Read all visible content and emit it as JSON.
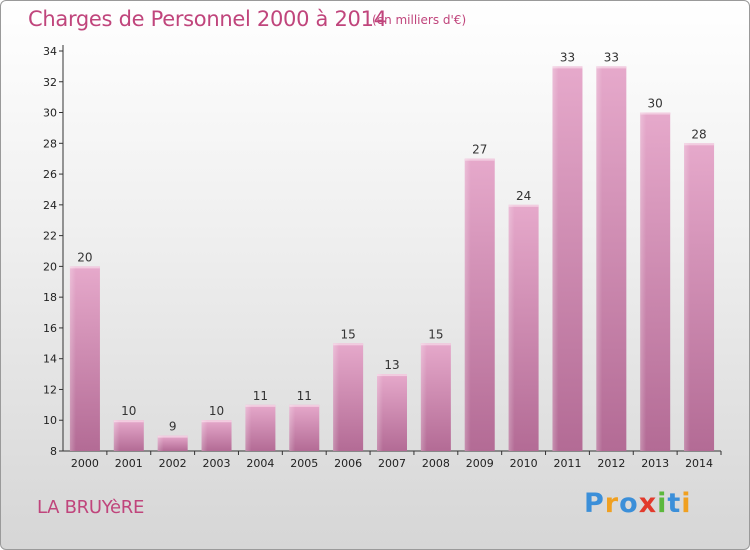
{
  "chart_data": {
    "type": "bar",
    "title": "Charges de Personnel 2000 à 2014",
    "subtitle": "(en milliers d'€)",
    "categories": [
      "2000",
      "2001",
      "2002",
      "2003",
      "2004",
      "2005",
      "2006",
      "2007",
      "2008",
      "2009",
      "2010",
      "2011",
      "2012",
      "2013",
      "2014"
    ],
    "values": [
      20,
      10,
      9,
      10,
      11,
      11,
      15,
      13,
      15,
      27,
      24,
      33,
      33,
      30,
      28
    ],
    "ylim": [
      8,
      34
    ],
    "yticks": [
      8,
      10,
      12,
      14,
      16,
      18,
      20,
      22,
      24,
      26,
      28,
      30,
      32,
      34
    ],
    "grid": false,
    "bar_color": "#d484b0"
  },
  "location": "LA BRUYèRE",
  "logo": {
    "letters": [
      "P",
      "r",
      "o",
      "x",
      "i",
      "t",
      "i"
    ],
    "colors": [
      "#3b8fd9",
      "#f0a020",
      "#3b8fd9",
      "#e23a2c",
      "#5cb83c",
      "#3b8fd9",
      "#f0a020"
    ]
  },
  "colors": {
    "accent": "#c0457c",
    "bar_light": "#e8b4d2",
    "bar_dark": "#b26a94"
  }
}
